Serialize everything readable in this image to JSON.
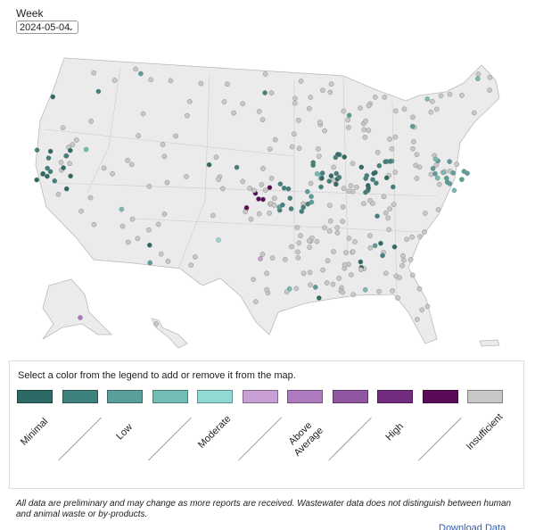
{
  "filter": {
    "label": "Week",
    "value": "2024-05-04"
  },
  "legend": {
    "instruction": "Select a color from the legend to add or remove it from the map.",
    "swatches": [
      "#2d6a66",
      "#3f817c",
      "#5a9e99",
      "#73bdb6",
      "#8fdbd3",
      "#c9a0d6",
      "#ae7bbf",
      "#90569f",
      "#732d80",
      "#5a0b57",
      "#c8c8c8"
    ],
    "labels": [
      "Minimal",
      "Low",
      "Moderate",
      "Above Average",
      "High",
      "Insufficient"
    ]
  },
  "footnote": "All data are preliminary and may change as more reports are received. Wastewater data does not distinguish between human and animal waste or by-products.",
  "link": "Download Data (CSV)"
}
